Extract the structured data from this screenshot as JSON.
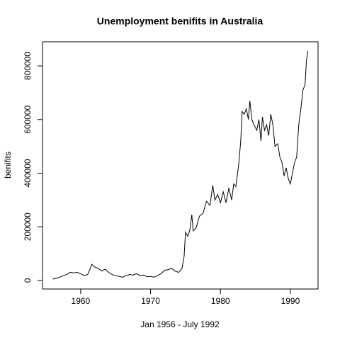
{
  "chart_data": {
    "type": "line",
    "title": "Unemployment benifits in Australia",
    "xlabel": "Jan 1956 - July 1992",
    "ylabel": "benifits",
    "x": [
      1956,
      1956.5,
      1957,
      1957.5,
      1958,
      1958.5,
      1959,
      1959.5,
      1960,
      1960.5,
      1961,
      1961.3,
      1961.6,
      1962,
      1962.5,
      1963,
      1963.5,
      1964,
      1964.5,
      1965,
      1965.5,
      1966,
      1966.5,
      1967,
      1967.5,
      1968,
      1968.5,
      1969,
      1969.5,
      1970,
      1970.5,
      1971,
      1971.5,
      1972,
      1972.5,
      1973,
      1973.5,
      1974,
      1974.5,
      1974.8,
      1975,
      1975.3,
      1975.6,
      1975.9,
      1976.1,
      1976.5,
      1977,
      1977.5,
      1978,
      1978.5,
      1978.9,
      1979.2,
      1979.6,
      1980,
      1980.4,
      1980.8,
      1981.2,
      1981.6,
      1981.9,
      1982.2,
      1982.6,
      1982.9,
      1983.1,
      1983.4,
      1983.7,
      1984,
      1984.2,
      1984.5,
      1984.8,
      1985.2,
      1985.5,
      1985.8,
      1986,
      1986.3,
      1986.6,
      1986.9,
      1987.2,
      1987.5,
      1987.8,
      1988.2,
      1988.5,
      1988.8,
      1989.1,
      1989.4,
      1989.7,
      1990,
      1990.3,
      1990.6,
      1990.9,
      1991.2,
      1991.5,
      1991.8,
      1992.1,
      1992.3,
      1992.5
    ],
    "series": [
      {
        "name": "benifits",
        "color": "#000000",
        "values": [
          5000,
          8000,
          12000,
          18000,
          22000,
          30000,
          28000,
          30000,
          25000,
          18000,
          22000,
          40000,
          60000,
          50000,
          45000,
          35000,
          42000,
          30000,
          22000,
          18000,
          15000,
          12000,
          18000,
          22000,
          20000,
          25000,
          18000,
          20000,
          14000,
          15000,
          12000,
          18000,
          25000,
          38000,
          40000,
          45000,
          35000,
          30000,
          45000,
          90000,
          180000,
          165000,
          185000,
          245000,
          185000,
          195000,
          240000,
          250000,
          295000,
          280000,
          355000,
          300000,
          320000,
          290000,
          330000,
          290000,
          345000,
          300000,
          360000,
          350000,
          430000,
          520000,
          630000,
          620000,
          640000,
          600000,
          670000,
          600000,
          580000,
          560000,
          600000,
          520000,
          610000,
          560000,
          580000,
          540000,
          620000,
          580000,
          500000,
          510000,
          460000,
          440000,
          390000,
          420000,
          380000,
          360000,
          400000,
          440000,
          460000,
          580000,
          640000,
          710000,
          730000,
          820000,
          855000
        ]
      }
    ],
    "xlim": [
      1954.54,
      1993.96
    ],
    "xticks": [
      1960,
      1970,
      1980,
      1990
    ],
    "ylim": [
      -32000,
      890000
    ],
    "yticks": [
      0,
      200000,
      400000,
      600000,
      800000
    ]
  }
}
